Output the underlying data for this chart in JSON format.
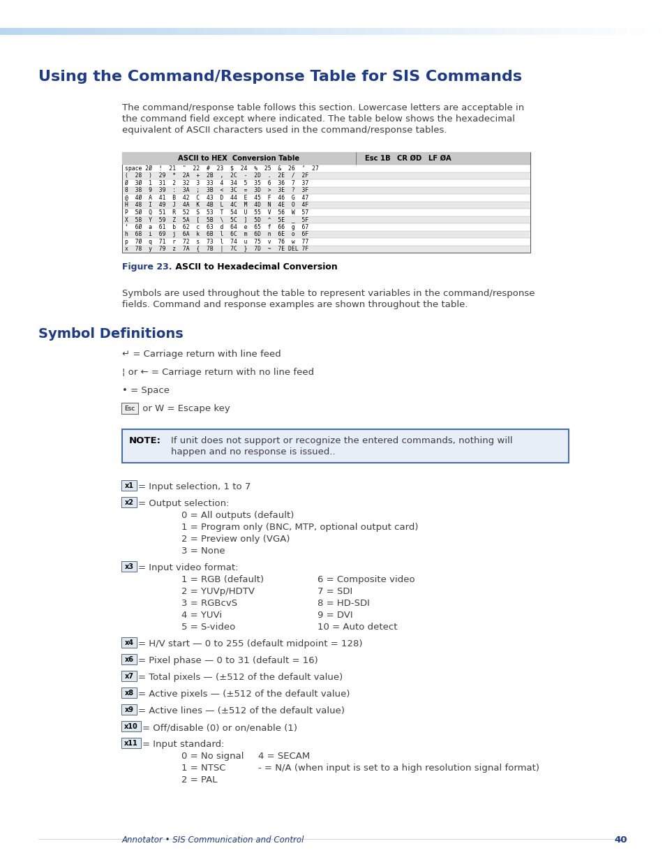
{
  "page_bg": "#ffffff",
  "title_main": "Using the Command/Response Table for SIS Commands",
  "title_color": "#1e3a8a",
  "body_text_color": "#3d3d3d",
  "intro_text_line1": "The command/response table follows this section. Lowercase letters are acceptable in",
  "intro_text_line2": "the command field except where indicated. The table below shows the hexadecimal",
  "intro_text_line3": "equivalent of ASCII characters used in the command/response tables.",
  "figure_caption_bold": "Figure 23.",
  "figure_caption_rest": " ASCII to Hexadecimal Conversion",
  "figure_caption_color": "#1e3a8a",
  "symbols_title": "Symbol Definitions",
  "symbols_title_color": "#1e3a8a",
  "note_text_line1": "If unit does not support or recognize the entered commands, nothing will",
  "note_text_line2": "happen and no response is issued..",
  "note_border_color": "#4a6fa5",
  "note_bg_color": "#e8eef7",
  "footer_text": "Annotator • SIS Communication and Control",
  "footer_page": "40",
  "footer_color": "#1e3a8a",
  "table_rows": [
    "space 2Ø  !  21  \"  22  #  23  $  24  %  25  &  26  ’  27",
    "(  28  )  29  *  2A  +  2B  ,  2C  -  2D  .  2E  /  2F",
    "Ø  3Ø  1  31  2  32  3  33  4  34  5  35  6  36  7  37",
    "8  38  9  39  :  3A  ;  3B  <  3C  =  3D  >  3E  ?  3F",
    "@  4Ø  A  41  B  42  C  43  D  44  E  45  F  46  G  47",
    "H  48  I  49  J  4A  K  4B  L  4C  M  4D  N  4E  O  4F",
    "P  5Ø  Q  51  R  52  S  53  T  54  U  55  V  56  W  57",
    "X  58  Y  59  Z  5A  [  5B  \\  5C  ]  5D  ^  5E  _  5F",
    "‘  6Ø  a  61  b  62  c  63  d  64  e  65  f  66  g  67",
    "h  68  i  69  j  6A  k  6B  l  6C  m  6D  n  6E  o  6F",
    "p  7Ø  q  71  r  72  s  73  l  74  u  75  v  76  w  77",
    "x  78  y  79  z  7A  {  7B  |  7C  }  7D  ~  7E DEL 7F"
  ],
  "x2_options": [
    "0 = All outputs (default)",
    "1 = Program only (BNC, MTP, optional output card)",
    "2 = Preview only (VGA)",
    "3 = None"
  ],
  "x3_options_left": [
    "1 = RGB (default)",
    "2 = YUVp/HDTV",
    "3 = RGBcvS",
    "4 = YUVi",
    "5 = S-video"
  ],
  "x3_options_right": [
    "6 = Composite video",
    "7 = SDI",
    "8 = HD-SDI",
    "9 = DVI",
    "10 = Auto detect"
  ],
  "x11_options_left": [
    "0 = No signal",
    "1 = NTSC",
    "2 = PAL"
  ],
  "x11_options_right": [
    "4 = SECAM",
    "- = N/A (when input is set to a high resolution signal format)",
    ""
  ]
}
